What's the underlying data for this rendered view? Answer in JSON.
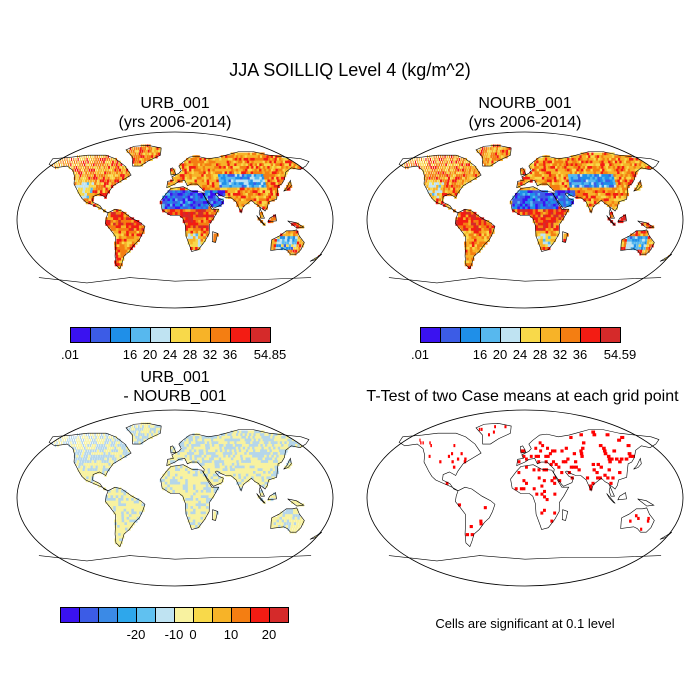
{
  "title": "JJA SOILLIQ Level 4 (kg/m^2)",
  "panels": [
    {
      "id": "urb",
      "title_line1": "URB_001",
      "title_line2": "(yrs 2006-2014)"
    },
    {
      "id": "nourb",
      "title_line1": "NOURB_001",
      "title_line2": "(yrs 2006-2014)"
    },
    {
      "id": "diff",
      "title_line1": "URB_001",
      "title_line2": "- NOURB_001"
    },
    {
      "id": "ttest",
      "title_line1": "T-Test of two Case means at each grid point",
      "title_line2": ""
    }
  ],
  "colorbars": {
    "abs_urb": {
      "colors": [
        "#3a12f0",
        "#3c5ce6",
        "#1f8fe8",
        "#57b8ee",
        "#bfe3f2",
        "#f8d94a",
        "#f7b328",
        "#f47e12",
        "#f31c13",
        "#d52a2a"
      ],
      "labels": [
        ".01",
        "16",
        "20",
        "24",
        "28",
        "32",
        "36",
        "54.85"
      ]
    },
    "abs_nourb": {
      "colors": [
        "#3a12f0",
        "#3c5ce6",
        "#1f8fe8",
        "#57b8ee",
        "#bfe3f2",
        "#f8d94a",
        "#f7b328",
        "#f47e12",
        "#f31c13",
        "#d52a2a"
      ],
      "labels": [
        ".01",
        "16",
        "20",
        "24",
        "28",
        "32",
        "36",
        "54.59"
      ]
    },
    "diff": {
      "colors": [
        "#3a12f0",
        "#3c5ce6",
        "#3b8ae6",
        "#2ea7eb",
        "#60c1f0",
        "#bfe3f2",
        "#f8f2a0",
        "#f8d94a",
        "#f7b328",
        "#f47e12",
        "#f31c13",
        "#d52a2a"
      ],
      "labels": [
        "-20",
        "-10",
        "0",
        "10",
        "20"
      ]
    }
  },
  "significance_note": "Cells are significant at 0.1 level",
  "colors": {
    "significant_cells": "#ff0000",
    "diff_land_positive": "#f8f2a0",
    "diff_land_negative": "#b5d6ea"
  }
}
